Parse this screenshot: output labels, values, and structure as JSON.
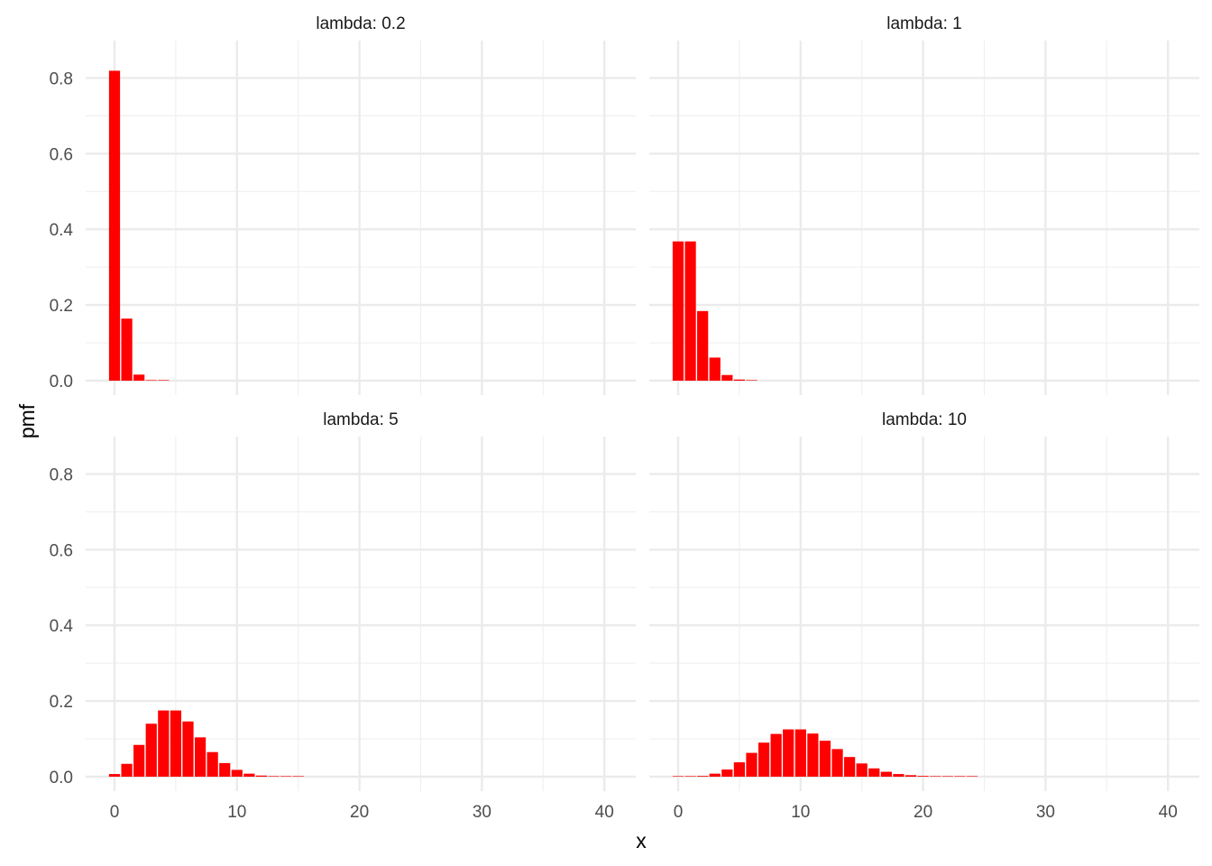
{
  "chart_data": {
    "type": "bar",
    "xlabel": "x",
    "ylabel": "pmf",
    "xlim": [
      -1,
      40.5
    ],
    "ylim": [
      0,
      0.82
    ],
    "x_ticks": [
      0,
      10,
      20,
      30,
      40
    ],
    "y_ticks": [
      0.0,
      0.2,
      0.4,
      0.6,
      0.8
    ],
    "y_tick_labels": [
      "0.0",
      "0.2",
      "0.4",
      "0.6",
      "0.8"
    ],
    "grid": true,
    "bar_color": "#ff0000",
    "panels": [
      {
        "strip": "lambda: 0.2",
        "x": [
          0,
          1,
          2,
          3,
          4
        ],
        "values": [
          0.819,
          0.164,
          0.016,
          0.001,
          0.0001
        ]
      },
      {
        "strip": "lambda: 1",
        "x": [
          0,
          1,
          2,
          3,
          4,
          5,
          6
        ],
        "values": [
          0.368,
          0.368,
          0.184,
          0.061,
          0.015,
          0.003,
          0.0005
        ]
      },
      {
        "strip": "lambda: 5",
        "x": [
          0,
          1,
          2,
          3,
          4,
          5,
          6,
          7,
          8,
          9,
          10,
          11,
          12,
          13,
          14,
          15
        ],
        "values": [
          0.007,
          0.034,
          0.084,
          0.14,
          0.175,
          0.175,
          0.146,
          0.104,
          0.065,
          0.036,
          0.018,
          0.008,
          0.003,
          0.001,
          0.0005,
          0.0002
        ]
      },
      {
        "strip": "lambda: 10",
        "x": [
          0,
          1,
          2,
          3,
          4,
          5,
          6,
          7,
          8,
          9,
          10,
          11,
          12,
          13,
          14,
          15,
          16,
          17,
          18,
          19,
          20,
          21,
          22,
          23,
          24
        ],
        "values": [
          5e-05,
          0.0005,
          0.002,
          0.008,
          0.019,
          0.038,
          0.063,
          0.09,
          0.113,
          0.125,
          0.125,
          0.114,
          0.095,
          0.073,
          0.052,
          0.035,
          0.022,
          0.013,
          0.007,
          0.004,
          0.002,
          0.001,
          0.0004,
          0.0002,
          0.0001
        ]
      }
    ]
  }
}
